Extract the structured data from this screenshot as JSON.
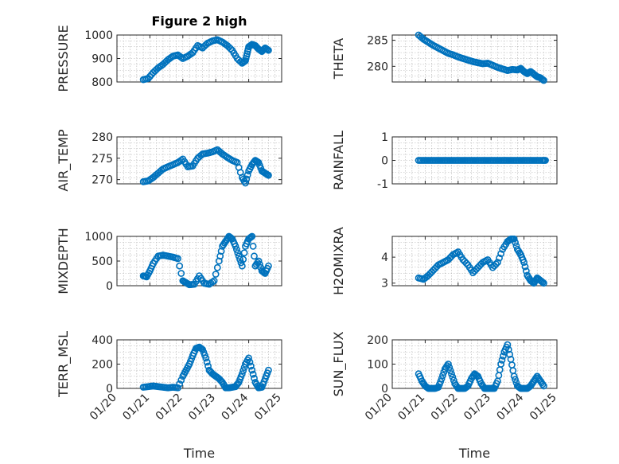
{
  "figure": {
    "title": "Figure 2 high",
    "marker_color": "#0072BD"
  },
  "chart_data": [
    {
      "type": "scatter",
      "title": "Figure 2 high",
      "ylabel": "PRESSURE",
      "ylim": [
        800,
        1000
      ],
      "yticks": [
        "800",
        "900",
        "1000"
      ],
      "xticks": [],
      "xlabel": "",
      "x": [
        0.8,
        0.95,
        1.1,
        1.25,
        1.4,
        1.55,
        1.7,
        1.85,
        2.0,
        2.15,
        2.3,
        2.45,
        2.6,
        2.75,
        2.9,
        3.05,
        3.2,
        3.35,
        3.5,
        3.65,
        3.8,
        3.9,
        3.95,
        4.0,
        4.1,
        4.2,
        4.3,
        4.4,
        4.5,
        4.6
      ],
      "y": [
        810,
        815,
        840,
        860,
        875,
        895,
        910,
        915,
        900,
        910,
        925,
        955,
        945,
        965,
        975,
        980,
        970,
        955,
        935,
        900,
        880,
        890,
        920,
        950,
        960,
        955,
        940,
        930,
        945,
        935
      ]
    },
    {
      "type": "scatter",
      "ylabel": "THETA",
      "ylim": [
        277,
        286
      ],
      "yticks": [
        "280",
        "285"
      ],
      "xticks": [],
      "xlabel": "",
      "x": [
        0.8,
        0.95,
        1.1,
        1.25,
        1.4,
        1.55,
        1.7,
        1.85,
        2.0,
        2.15,
        2.3,
        2.45,
        2.6,
        2.75,
        2.9,
        3.05,
        3.2,
        3.35,
        3.5,
        3.65,
        3.8,
        3.9,
        4.0,
        4.1,
        4.2,
        4.3,
        4.4,
        4.5,
        4.6
      ],
      "y": [
        286,
        285.2,
        284.6,
        284.0,
        283.5,
        283.0,
        282.5,
        282.2,
        281.8,
        281.5,
        281.2,
        280.9,
        280.7,
        280.5,
        280.6,
        280.2,
        279.8,
        279.5,
        279.2,
        279.4,
        279.3,
        279.6,
        279.0,
        278.6,
        279.0,
        278.5,
        278.0,
        277.8,
        277.3
      ]
    },
    {
      "type": "scatter",
      "ylabel": "AIR_TEMP",
      "ylim": [
        269,
        280
      ],
      "yticks": [
        "270",
        "275",
        "280"
      ],
      "xticks": [],
      "xlabel": "",
      "x": [
        0.8,
        0.95,
        1.1,
        1.25,
        1.4,
        1.55,
        1.7,
        1.85,
        2.0,
        2.15,
        2.3,
        2.45,
        2.6,
        2.75,
        2.9,
        3.05,
        3.2,
        3.35,
        3.5,
        3.65,
        3.8,
        3.9,
        4.0,
        4.1,
        4.2,
        4.3,
        4.4,
        4.5,
        4.6
      ],
      "y": [
        269.5,
        269.7,
        270.5,
        271.5,
        272.5,
        273.0,
        273.5,
        274.0,
        274.8,
        273.0,
        273.2,
        275.0,
        276.0,
        276.2,
        276.5,
        277.0,
        276.0,
        275.2,
        274.5,
        274.0,
        270.5,
        269.2,
        272.0,
        273.5,
        274.5,
        274.0,
        272.0,
        271.5,
        271.0
      ]
    },
    {
      "type": "scatter",
      "ylabel": "RAINFALL",
      "ylim": [
        -1,
        1
      ],
      "yticks": [
        "-1",
        "0",
        "1"
      ],
      "xticks": [],
      "xlabel": "",
      "x": [
        0.8,
        0.95,
        1.1,
        1.25,
        1.4,
        1.55,
        1.7,
        1.85,
        2.0,
        2.15,
        2.3,
        2.45,
        2.6,
        2.75,
        2.9,
        3.05,
        3.2,
        3.35,
        3.5,
        3.65,
        3.8,
        3.95,
        4.1,
        4.25,
        4.4,
        4.55,
        4.65
      ],
      "y": [
        0,
        0,
        0,
        0,
        0,
        0,
        0,
        0,
        0,
        0,
        0,
        0,
        0,
        0,
        0,
        0,
        0,
        0,
        0,
        0,
        0,
        0,
        0,
        0,
        0,
        0,
        0
      ]
    },
    {
      "type": "scatter",
      "ylabel": "MIXDEPTH",
      "ylim": [
        0,
        1000
      ],
      "yticks": [
        "0",
        "500",
        "1000"
      ],
      "xticks": [],
      "xlabel": "",
      "x": [
        0.8,
        0.9,
        1.0,
        1.1,
        1.25,
        1.4,
        1.55,
        1.7,
        1.85,
        2.0,
        2.1,
        2.2,
        2.35,
        2.5,
        2.65,
        2.8,
        2.95,
        3.1,
        3.2,
        3.3,
        3.4,
        3.5,
        3.6,
        3.7,
        3.8,
        3.9,
        4.0,
        4.1,
        4.2,
        4.3,
        4.4,
        4.5,
        4.6
      ],
      "y": [
        200,
        180,
        300,
        450,
        600,
        620,
        600,
        580,
        550,
        100,
        60,
        20,
        30,
        200,
        50,
        30,
        100,
        500,
        800,
        900,
        1000,
        950,
        800,
        600,
        400,
        800,
        950,
        1000,
        400,
        500,
        300,
        250,
        400
      ]
    },
    {
      "type": "scatter",
      "ylabel": "H2OMIXRA",
      "ylim": [
        2.9,
        4.8
      ],
      "yticks": [
        "3",
        "4"
      ],
      "xticks": [],
      "xlabel": "",
      "x": [
        0.8,
        0.95,
        1.1,
        1.25,
        1.4,
        1.55,
        1.7,
        1.85,
        2.0,
        2.15,
        2.3,
        2.45,
        2.6,
        2.75,
        2.9,
        3.05,
        3.2,
        3.35,
        3.5,
        3.6,
        3.7,
        3.8,
        3.9,
        4.0,
        4.1,
        4.2,
        4.3,
        4.4,
        4.5,
        4.6
      ],
      "y": [
        3.2,
        3.15,
        3.3,
        3.5,
        3.7,
        3.8,
        3.9,
        4.1,
        4.2,
        3.9,
        3.7,
        3.4,
        3.6,
        3.8,
        3.9,
        3.6,
        3.8,
        4.3,
        4.6,
        4.7,
        4.7,
        4.3,
        4.1,
        3.8,
        3.3,
        3.1,
        3.0,
        3.2,
        3.1,
        3.0
      ]
    },
    {
      "type": "scatter",
      "ylabel": "TERR_MSL",
      "ylim": [
        0,
        400
      ],
      "yticks": [
        "0",
        "200",
        "400"
      ],
      "xticks": [
        "01/20",
        "01/21",
        "01/22",
        "01/23",
        "01/24",
        "01/25"
      ],
      "xlabel": "Time",
      "x": [
        0.8,
        0.95,
        1.1,
        1.25,
        1.4,
        1.55,
        1.7,
        1.85,
        2.0,
        2.1,
        2.2,
        2.3,
        2.4,
        2.5,
        2.6,
        2.7,
        2.8,
        2.9,
        3.0,
        3.1,
        3.2,
        3.3,
        3.4,
        3.5,
        3.6,
        3.7,
        3.8,
        3.9,
        4.0,
        4.1,
        4.2,
        4.3,
        4.4,
        4.5,
        4.6
      ],
      "y": [
        10,
        15,
        20,
        15,
        10,
        5,
        10,
        5,
        100,
        150,
        200,
        270,
        330,
        340,
        320,
        250,
        150,
        120,
        100,
        80,
        50,
        5,
        5,
        10,
        15,
        50,
        120,
        200,
        250,
        150,
        50,
        5,
        10,
        80,
        150
      ]
    },
    {
      "type": "scatter",
      "ylabel": "SUN_FLUX",
      "ylim": [
        0,
        200
      ],
      "yticks": [
        "0",
        "100",
        "200"
      ],
      "xticks": [
        "01/20",
        "01/21",
        "01/22",
        "01/23",
        "01/24",
        "01/25"
      ],
      "xlabel": "Time",
      "x": [
        0.8,
        0.9,
        1.0,
        1.1,
        1.2,
        1.3,
        1.4,
        1.5,
        1.6,
        1.7,
        1.8,
        1.9,
        2.0,
        2.1,
        2.2,
        2.3,
        2.4,
        2.5,
        2.6,
        2.7,
        2.8,
        2.9,
        3.0,
        3.1,
        3.2,
        3.3,
        3.4,
        3.5,
        3.6,
        3.7,
        3.8,
        3.9,
        4.0,
        4.1,
        4.2,
        4.3,
        4.4,
        4.5,
        4.6
      ],
      "y": [
        60,
        30,
        10,
        0,
        0,
        0,
        5,
        40,
        80,
        100,
        60,
        20,
        0,
        0,
        0,
        10,
        40,
        60,
        50,
        20,
        0,
        0,
        0,
        0,
        30,
        100,
        150,
        180,
        120,
        50,
        10,
        0,
        0,
        0,
        10,
        30,
        50,
        30,
        10
      ]
    }
  ]
}
